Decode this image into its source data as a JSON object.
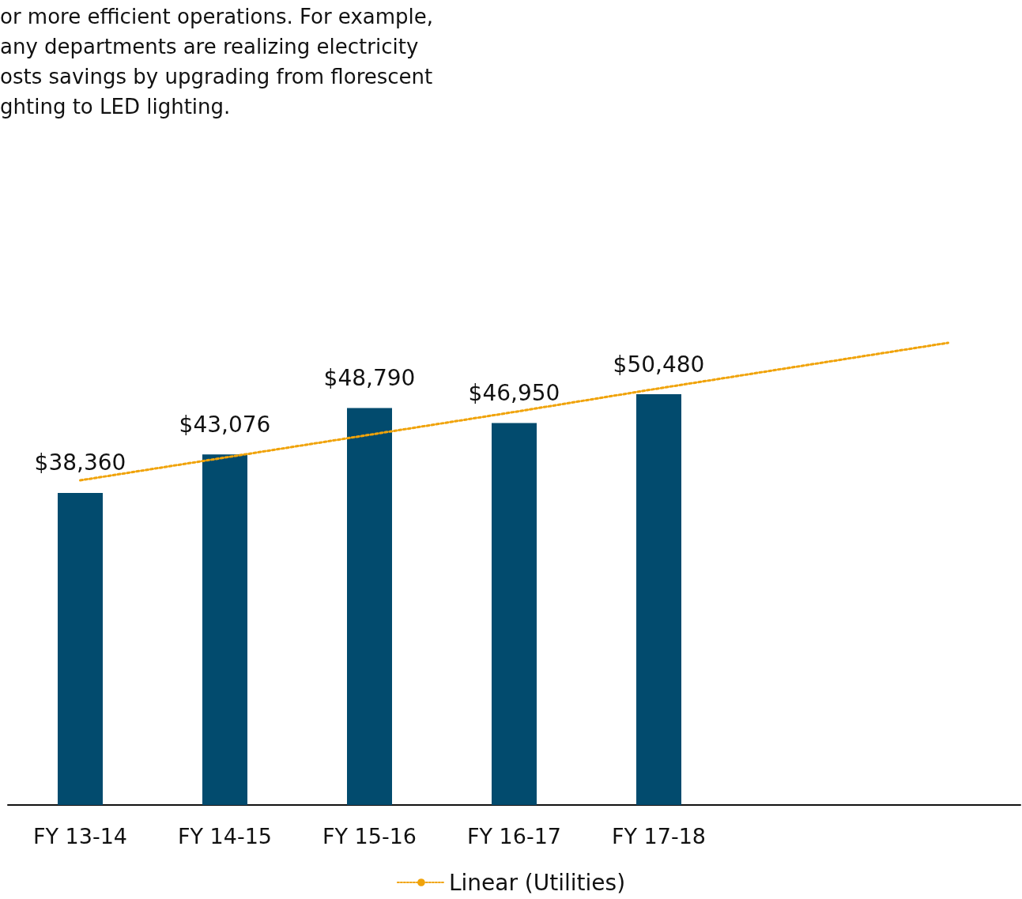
{
  "chart_data": {
    "type": "bar",
    "annotations": [
      "or more efficient operations. For example,\nany departments are realizing electricity\nosts savings by upgrading from florescent\nghting to LED lighting."
    ],
    "categories": [
      "FY 13-14",
      "FY 14-15",
      "FY 15-16",
      "FY 16-17",
      "FY 17-18",
      null,
      null
    ],
    "series": [
      {
        "color": "#024b6e",
        "values": [
          38360,
          43076,
          48790,
          46950,
          50480,
          null,
          null
        ],
        "value_labels": [
          "$38,360",
          "$43,076",
          "$48,790",
          "$46,950",
          "$50,480",
          null,
          null
        ]
      },
      {
        "type": "line",
        "name": "Linear (Utilities)",
        "color": "#f0a30a",
        "line_style": "dotted",
        "marker": "none",
        "values": [
          39900,
          42700,
          45500,
          48300,
          51200,
          54000,
          56800
        ]
      }
    ],
    "legend": "bottom",
    "grid": false
  }
}
